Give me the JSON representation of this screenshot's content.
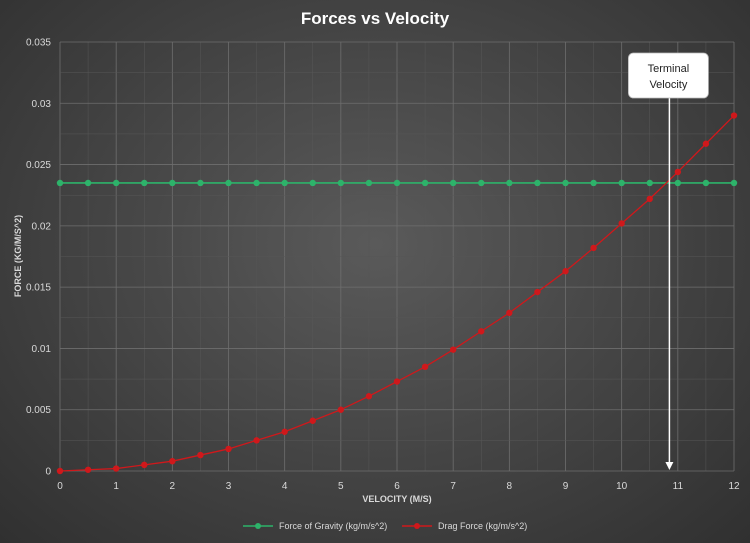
{
  "chart_data": {
    "type": "line",
    "title": "Forces vs Velocity",
    "xlabel": "VELOCITY (M/S)",
    "ylabel": "FORCE (KG/M/S^2)",
    "xlim": [
      0,
      12
    ],
    "ylim": [
      0,
      0.035
    ],
    "x_ticks": [
      "0",
      "1",
      "2",
      "3",
      "4",
      "5",
      "6",
      "7",
      "8",
      "9",
      "10",
      "11",
      "12"
    ],
    "y_ticks": [
      "0",
      "0.005",
      "0.01",
      "0.015",
      "0.02",
      "0.025",
      "0.03",
      "0.035"
    ],
    "grid": true,
    "legend_position": "bottom",
    "x": [
      0,
      0.5,
      1,
      1.5,
      2,
      2.5,
      3,
      3.5,
      4,
      4.5,
      5,
      5.5,
      6,
      6.5,
      7,
      7.5,
      8,
      8.5,
      9,
      9.5,
      10,
      10.5,
      11,
      11.5,
      12
    ],
    "series": [
      {
        "name": "Force of Gravity (kg/m/s^2)",
        "color": "#2db36a",
        "values": [
          0.0235,
          0.0235,
          0.0235,
          0.0235,
          0.0235,
          0.0235,
          0.0235,
          0.0235,
          0.0235,
          0.0235,
          0.0235,
          0.0235,
          0.0235,
          0.0235,
          0.0235,
          0.0235,
          0.0235,
          0.0235,
          0.0235,
          0.0235,
          0.0235,
          0.0235,
          0.0235,
          0.0235,
          0.0235
        ]
      },
      {
        "name": "Drag Force (kg/m/s^2)",
        "color": "#d0181b",
        "values": [
          0,
          0.0001,
          0.0002,
          0.0005,
          0.0008,
          0.0013,
          0.0018,
          0.0025,
          0.0032,
          0.0041,
          0.005,
          0.0061,
          0.0073,
          0.0085,
          0.0099,
          0.0114,
          0.0129,
          0.0146,
          0.0163,
          0.0182,
          0.0202,
          0.0222,
          0.0244,
          0.0267,
          0.029
        ]
      }
    ],
    "annotation": {
      "text_line1": "Terminal",
      "text_line2": "Velocity",
      "x": 10.85
    }
  }
}
